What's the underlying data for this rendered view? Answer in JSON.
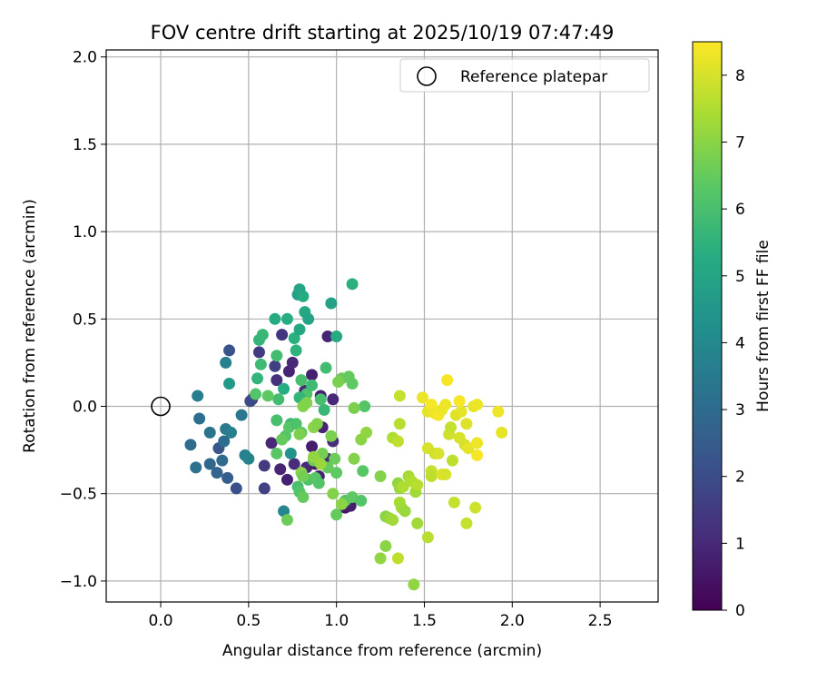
{
  "chart_data": {
    "type": "scatter",
    "title": "FOV centre drift starting at 2025/10/19 07:47:49",
    "xlabel": "Angular distance from reference (arcmin)",
    "ylabel": "Rotation from reference (arcmin)",
    "xlim": [
      -0.31,
      2.83
    ],
    "ylim": [
      -1.12,
      2.04
    ],
    "xticks": [
      0.0,
      0.5,
      1.0,
      1.5,
      2.0,
      2.5
    ],
    "xtick_labels": [
      "0.0",
      "0.5",
      "1.0",
      "1.5",
      "2.0",
      "2.5"
    ],
    "yticks": [
      -1.0,
      -0.5,
      0.0,
      0.5,
      1.0,
      1.5,
      2.0
    ],
    "ytick_labels": [
      "−1.0",
      "−0.5",
      "0.0",
      "0.5",
      "1.0",
      "1.5",
      "2.0"
    ],
    "grid": true,
    "legend": {
      "placement": "top-right",
      "label": "Reference platepar"
    },
    "reference_point": {
      "x": 0.0,
      "y": 0.0
    },
    "colorbar": {
      "label": "Hours from first FF file",
      "colormap": "viridis",
      "min": 0,
      "max": 8.5,
      "ticks": [
        0,
        1,
        2,
        3,
        4,
        5,
        6,
        7,
        8
      ],
      "tick_labels": [
        "0",
        "1",
        "2",
        "3",
        "4",
        "5",
        "6",
        "7",
        "8"
      ]
    },
    "points": [
      {
        "x": 0.63,
        "y": -0.21,
        "t": 1.0
      },
      {
        "x": 0.68,
        "y": -0.36,
        "t": 0.9
      },
      {
        "x": 0.72,
        "y": -0.42,
        "t": 0.8
      },
      {
        "x": 0.76,
        "y": -0.33,
        "t": 1.1
      },
      {
        "x": 0.83,
        "y": -0.35,
        "t": 1.0
      },
      {
        "x": 0.86,
        "y": -0.23,
        "t": 0.7
      },
      {
        "x": 0.88,
        "y": -0.33,
        "t": 0.6
      },
      {
        "x": 0.9,
        "y": -0.4,
        "t": 0.8
      },
      {
        "x": 0.92,
        "y": -0.12,
        "t": 0.9
      },
      {
        "x": 0.95,
        "y": -0.3,
        "t": 1.0
      },
      {
        "x": 0.98,
        "y": -0.2,
        "t": 1.1
      },
      {
        "x": 1.05,
        "y": -0.58,
        "t": 0.6
      },
      {
        "x": 1.08,
        "y": -0.57,
        "t": 0.7
      },
      {
        "x": 0.66,
        "y": 0.15,
        "t": 1.2
      },
      {
        "x": 0.73,
        "y": 0.2,
        "t": 0.9
      },
      {
        "x": 0.75,
        "y": 0.25,
        "t": 1.0
      },
      {
        "x": 0.82,
        "y": 0.09,
        "t": 1.1
      },
      {
        "x": 0.86,
        "y": 0.18,
        "t": 0.8
      },
      {
        "x": 0.91,
        "y": 0.06,
        "t": 0.7
      },
      {
        "x": 0.95,
        "y": 0.4,
        "t": 0.9
      },
      {
        "x": 0.98,
        "y": 0.04,
        "t": 1.0
      },
      {
        "x": 0.52,
        "y": 0.04,
        "t": 1.4
      },
      {
        "x": 0.56,
        "y": 0.31,
        "t": 1.5
      },
      {
        "x": 0.59,
        "y": -0.34,
        "t": 1.5
      },
      {
        "x": 0.59,
        "y": -0.47,
        "t": 1.7
      },
      {
        "x": 0.65,
        "y": 0.23,
        "t": 1.6
      },
      {
        "x": 0.69,
        "y": 0.41,
        "t": 1.3
      },
      {
        "x": 0.51,
        "y": 0.03,
        "t": 1.9
      },
      {
        "x": 0.43,
        "y": -0.47,
        "t": 2.1
      },
      {
        "x": 0.39,
        "y": 0.32,
        "t": 2.2
      },
      {
        "x": 0.38,
        "y": -0.41,
        "t": 2.6
      },
      {
        "x": 0.32,
        "y": -0.38,
        "t": 2.8
      },
      {
        "x": 0.28,
        "y": -0.33,
        "t": 2.9
      },
      {
        "x": 0.33,
        "y": -0.24,
        "t": 2.3
      },
      {
        "x": 0.35,
        "y": -0.31,
        "t": 3.0
      },
      {
        "x": 0.36,
        "y": -0.2,
        "t": 3.1
      },
      {
        "x": 0.28,
        "y": -0.15,
        "t": 3.3
      },
      {
        "x": 0.17,
        "y": -0.22,
        "t": 3.0
      },
      {
        "x": 0.2,
        "y": -0.35,
        "t": 3.2
      },
      {
        "x": 0.22,
        "y": -0.07,
        "t": 3.1
      },
      {
        "x": 0.21,
        "y": 0.06,
        "t": 3.6
      },
      {
        "x": 0.37,
        "y": -0.13,
        "t": 3.5
      },
      {
        "x": 0.4,
        "y": -0.15,
        "t": 3.6
      },
      {
        "x": 0.46,
        "y": -0.05,
        "t": 3.4
      },
      {
        "x": 0.48,
        "y": -0.28,
        "t": 3.7
      },
      {
        "x": 0.5,
        "y": -0.3,
        "t": 3.8
      },
      {
        "x": 0.37,
        "y": 0.25,
        "t": 3.7
      },
      {
        "x": 0.39,
        "y": 0.13,
        "t": 4.6
      },
      {
        "x": 0.7,
        "y": -0.6,
        "t": 3.9
      },
      {
        "x": 0.74,
        "y": -0.27,
        "t": 4.4
      },
      {
        "x": 0.78,
        "y": 0.64,
        "t": 4.8
      },
      {
        "x": 0.79,
        "y": 0.67,
        "t": 5.0
      },
      {
        "x": 0.81,
        "y": 0.63,
        "t": 5.2
      },
      {
        "x": 0.82,
        "y": 0.54,
        "t": 5.1
      },
      {
        "x": 0.84,
        "y": 0.5,
        "t": 5.0
      },
      {
        "x": 0.72,
        "y": 0.5,
        "t": 5.3
      },
      {
        "x": 0.65,
        "y": 0.5,
        "t": 5.2
      },
      {
        "x": 0.76,
        "y": 0.39,
        "t": 5.4
      },
      {
        "x": 0.79,
        "y": 0.44,
        "t": 5.1
      },
      {
        "x": 0.77,
        "y": 0.32,
        "t": 5.5
      },
      {
        "x": 0.97,
        "y": 0.59,
        "t": 4.9
      },
      {
        "x": 1.09,
        "y": 0.7,
        "t": 5.4
      },
      {
        "x": 1.0,
        "y": 0.4,
        "t": 5.2
      },
      {
        "x": 0.7,
        "y": 0.1,
        "t": 5.3
      },
      {
        "x": 0.56,
        "y": 0.38,
        "t": 5.6
      },
      {
        "x": 0.58,
        "y": 0.41,
        "t": 5.7
      },
      {
        "x": 0.55,
        "y": 0.16,
        "t": 5.6
      },
      {
        "x": 0.57,
        "y": 0.24,
        "t": 5.8
      },
      {
        "x": 0.66,
        "y": 0.29,
        "t": 5.9
      },
      {
        "x": 0.67,
        "y": 0.04,
        "t": 5.9
      },
      {
        "x": 0.8,
        "y": 0.15,
        "t": 6.0
      },
      {
        "x": 0.83,
        "y": 0.07,
        "t": 6.1
      },
      {
        "x": 0.86,
        "y": 0.12,
        "t": 5.8
      },
      {
        "x": 0.91,
        "y": 0.04,
        "t": 6.0
      },
      {
        "x": 0.93,
        "y": -0.02,
        "t": 5.7
      },
      {
        "x": 0.94,
        "y": 0.22,
        "t": 5.9
      },
      {
        "x": 0.79,
        "y": 0.05,
        "t": 5.6
      },
      {
        "x": 0.74,
        "y": -0.1,
        "t": 5.7
      },
      {
        "x": 0.66,
        "y": -0.08,
        "t": 6.0
      },
      {
        "x": 0.54,
        "y": 0.07,
        "t": 6.2
      },
      {
        "x": 0.61,
        "y": 0.06,
        "t": 6.4
      },
      {
        "x": 0.71,
        "y": -0.17,
        "t": 6.2
      },
      {
        "x": 0.73,
        "y": -0.12,
        "t": 6.3
      },
      {
        "x": 0.77,
        "y": -0.1,
        "t": 6.1
      },
      {
        "x": 0.8,
        "y": -0.15,
        "t": 6.4
      },
      {
        "x": 0.66,
        "y": -0.27,
        "t": 6.3
      },
      {
        "x": 0.69,
        "y": -0.19,
        "t": 6.5
      },
      {
        "x": 0.78,
        "y": -0.46,
        "t": 6.0
      },
      {
        "x": 0.79,
        "y": -0.49,
        "t": 6.2
      },
      {
        "x": 0.84,
        "y": -0.42,
        "t": 6.1
      },
      {
        "x": 0.88,
        "y": -0.41,
        "t": 6.3
      },
      {
        "x": 0.9,
        "y": -0.44,
        "t": 6.2
      },
      {
        "x": 0.72,
        "y": -0.65,
        "t": 6.6
      },
      {
        "x": 0.81,
        "y": -0.52,
        "t": 6.5
      },
      {
        "x": 0.87,
        "y": -0.31,
        "t": 6.6
      },
      {
        "x": 0.92,
        "y": -0.27,
        "t": 6.7
      },
      {
        "x": 0.95,
        "y": -0.35,
        "t": 6.5
      },
      {
        "x": 0.99,
        "y": -0.3,
        "t": 6.6
      },
      {
        "x": 1.0,
        "y": -0.38,
        "t": 6.4
      },
      {
        "x": 1.0,
        "y": -0.62,
        "t": 6.5
      },
      {
        "x": 1.05,
        "y": -0.54,
        "t": 6.3
      },
      {
        "x": 1.09,
        "y": -0.52,
        "t": 6.4
      },
      {
        "x": 1.14,
        "y": -0.54,
        "t": 6.2
      },
      {
        "x": 1.15,
        "y": -0.37,
        "t": 6.3
      },
      {
        "x": 1.16,
        "y": 0.0,
        "t": 6.2
      },
      {
        "x": 1.03,
        "y": 0.16,
        "t": 6.6
      },
      {
        "x": 1.07,
        "y": 0.17,
        "t": 6.5
      },
      {
        "x": 1.09,
        "y": 0.13,
        "t": 6.4
      },
      {
        "x": 1.01,
        "y": 0.14,
        "t": 6.8
      },
      {
        "x": 0.97,
        "y": -0.17,
        "t": 6.8
      },
      {
        "x": 0.98,
        "y": -0.5,
        "t": 6.9
      },
      {
        "x": 1.03,
        "y": -0.56,
        "t": 7.0
      },
      {
        "x": 1.1,
        "y": -0.3,
        "t": 6.9
      },
      {
        "x": 1.1,
        "y": -0.01,
        "t": 6.8
      },
      {
        "x": 1.14,
        "y": -0.19,
        "t": 7.0
      },
      {
        "x": 1.17,
        "y": -0.15,
        "t": 7.1
      },
      {
        "x": 0.81,
        "y": 0.0,
        "t": 6.9
      },
      {
        "x": 0.83,
        "y": 0.02,
        "t": 6.9
      },
      {
        "x": 0.87,
        "y": -0.12,
        "t": 7.0
      },
      {
        "x": 0.89,
        "y": -0.1,
        "t": 6.9
      },
      {
        "x": 0.79,
        "y": -0.16,
        "t": 6.8
      },
      {
        "x": 0.8,
        "y": -0.38,
        "t": 7.0
      },
      {
        "x": 0.87,
        "y": -0.29,
        "t": 7.1
      },
      {
        "x": 0.91,
        "y": -0.33,
        "t": 7.2
      },
      {
        "x": 0.81,
        "y": -0.4,
        "t": 6.7
      },
      {
        "x": 1.25,
        "y": -0.4,
        "t": 6.9
      },
      {
        "x": 1.28,
        "y": -0.8,
        "t": 7.0
      },
      {
        "x": 1.25,
        "y": -0.87,
        "t": 7.1
      },
      {
        "x": 1.28,
        "y": -0.63,
        "t": 7.0
      },
      {
        "x": 1.3,
        "y": -0.64,
        "t": 7.2
      },
      {
        "x": 1.32,
        "y": -0.65,
        "t": 7.3
      },
      {
        "x": 1.35,
        "y": -0.44,
        "t": 7.1
      },
      {
        "x": 1.36,
        "y": -0.47,
        "t": 7.2
      },
      {
        "x": 1.36,
        "y": -0.55,
        "t": 7.4
      },
      {
        "x": 1.37,
        "y": -0.58,
        "t": 7.3
      },
      {
        "x": 1.38,
        "y": -0.46,
        "t": 7.5
      },
      {
        "x": 1.39,
        "y": -0.6,
        "t": 7.2
      },
      {
        "x": 1.41,
        "y": -0.4,
        "t": 7.4
      },
      {
        "x": 1.43,
        "y": -0.43,
        "t": 7.5
      },
      {
        "x": 1.45,
        "y": -0.49,
        "t": 7.3
      },
      {
        "x": 1.46,
        "y": -0.45,
        "t": 7.6
      },
      {
        "x": 1.44,
        "y": -1.02,
        "t": 7.1
      },
      {
        "x": 1.46,
        "y": -0.67,
        "t": 7.3
      },
      {
        "x": 1.52,
        "y": -0.75,
        "t": 7.6
      },
      {
        "x": 1.32,
        "y": -0.18,
        "t": 7.5
      },
      {
        "x": 1.35,
        "y": -0.2,
        "t": 7.7
      },
      {
        "x": 1.36,
        "y": -0.1,
        "t": 7.6
      },
      {
        "x": 1.36,
        "y": 0.06,
        "t": 7.8
      },
      {
        "x": 1.35,
        "y": -0.87,
        "t": 7.7
      },
      {
        "x": 1.54,
        "y": -0.37,
        "t": 7.8
      },
      {
        "x": 1.54,
        "y": -0.4,
        "t": 7.7
      },
      {
        "x": 1.52,
        "y": -0.24,
        "t": 8.0
      },
      {
        "x": 1.56,
        "y": -0.27,
        "t": 7.9
      },
      {
        "x": 1.58,
        "y": -0.27,
        "t": 8.0
      },
      {
        "x": 1.6,
        "y": -0.39,
        "t": 8.1
      },
      {
        "x": 1.62,
        "y": -0.39,
        "t": 8.0
      },
      {
        "x": 1.64,
        "y": -0.16,
        "t": 7.9
      },
      {
        "x": 1.66,
        "y": -0.31,
        "t": 7.7
      },
      {
        "x": 1.65,
        "y": -0.12,
        "t": 7.8
      },
      {
        "x": 1.68,
        "y": -0.05,
        "t": 8.1
      },
      {
        "x": 1.7,
        "y": -0.18,
        "t": 8.0
      },
      {
        "x": 1.71,
        "y": -0.03,
        "t": 8.2
      },
      {
        "x": 1.73,
        "y": -0.22,
        "t": 8.0
      },
      {
        "x": 1.74,
        "y": -0.1,
        "t": 8.1
      },
      {
        "x": 1.75,
        "y": -0.24,
        "t": 8.2
      },
      {
        "x": 1.74,
        "y": -0.67,
        "t": 7.8
      },
      {
        "x": 1.79,
        "y": -0.58,
        "t": 7.9
      },
      {
        "x": 1.67,
        "y": -0.55,
        "t": 7.8
      },
      {
        "x": 1.78,
        "y": 0.0,
        "t": 8.2
      },
      {
        "x": 1.8,
        "y": 0.01,
        "t": 8.3
      },
      {
        "x": 1.8,
        "y": -0.21,
        "t": 8.3
      },
      {
        "x": 1.8,
        "y": -0.28,
        "t": 8.4
      },
      {
        "x": 1.92,
        "y": -0.03,
        "t": 8.3
      },
      {
        "x": 1.94,
        "y": -0.15,
        "t": 8.2
      },
      {
        "x": 1.49,
        "y": 0.05,
        "t": 8.3
      },
      {
        "x": 1.52,
        "y": -0.03,
        "t": 8.2
      },
      {
        "x": 1.54,
        "y": 0.01,
        "t": 8.4
      },
      {
        "x": 1.56,
        "y": -0.04,
        "t": 8.3
      },
      {
        "x": 1.58,
        "y": -0.05,
        "t": 8.4
      },
      {
        "x": 1.6,
        "y": -0.02,
        "t": 8.3
      },
      {
        "x": 1.63,
        "y": 0.15,
        "t": 8.4
      },
      {
        "x": 1.62,
        "y": 0.01,
        "t": 8.3
      },
      {
        "x": 1.7,
        "y": 0.03,
        "t": 8.4
      }
    ]
  }
}
